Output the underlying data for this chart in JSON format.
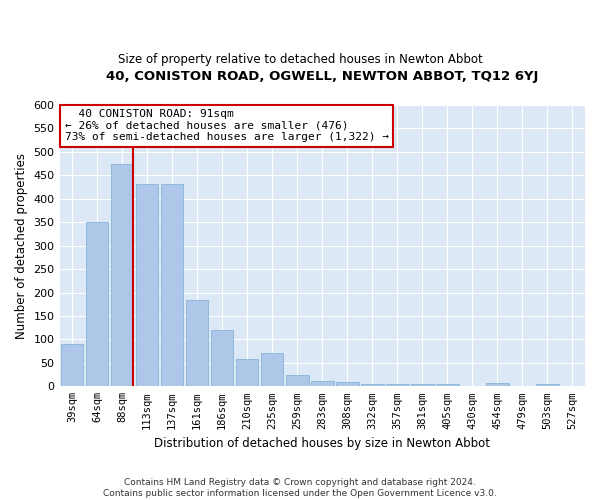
{
  "title": "40, CONISTON ROAD, OGWELL, NEWTON ABBOT, TQ12 6YJ",
  "subtitle": "Size of property relative to detached houses in Newton Abbot",
  "xlabel": "Distribution of detached houses by size in Newton Abbot",
  "ylabel": "Number of detached properties",
  "footer1": "Contains HM Land Registry data © Crown copyright and database right 2024.",
  "footer2": "Contains public sector information licensed under the Open Government Licence v3.0.",
  "annotation_title": "40 CONISTON ROAD: 91sqm",
  "annotation_line1": "← 26% of detached houses are smaller (476)",
  "annotation_line2": "73% of semi-detached houses are larger (1,322) →",
  "bar_color": "#aec6e8",
  "bar_edge_color": "#7aaed4",
  "highlight_line_color": "#cc0000",
  "annotation_box_color": "#cc0000",
  "bg_color": "#dce8f5",
  "categories": [
    "39sqm",
    "64sqm",
    "88sqm",
    "113sqm",
    "137sqm",
    "161sqm",
    "186sqm",
    "210sqm",
    "235sqm",
    "259sqm",
    "283sqm",
    "308sqm",
    "332sqm",
    "357sqm",
    "381sqm",
    "405sqm",
    "430sqm",
    "454sqm",
    "479sqm",
    "503sqm",
    "527sqm"
  ],
  "values": [
    90,
    350,
    475,
    432,
    432,
    185,
    120,
    58,
    70,
    25,
    12,
    9,
    5,
    4,
    4,
    4,
    0,
    6,
    0,
    5,
    0
  ],
  "highlight_index": 2,
  "ylim": [
    0,
    600
  ],
  "yticks": [
    0,
    50,
    100,
    150,
    200,
    250,
    300,
    350,
    400,
    450,
    500,
    550,
    600
  ]
}
